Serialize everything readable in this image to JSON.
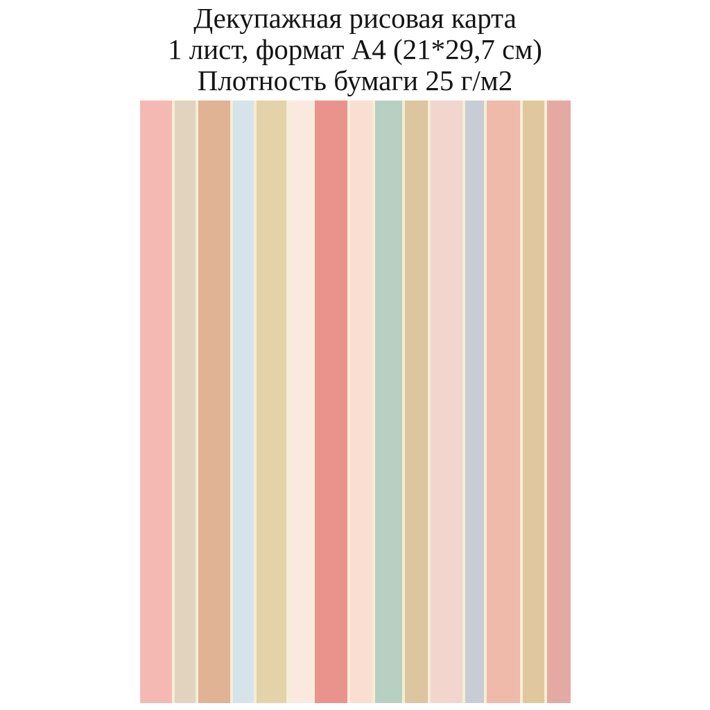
{
  "product_card": {
    "lines": [
      "Декупажная рисовая карта",
      "1 лист, формат А4 (21*29,7 см)",
      "Плотность бумаги 25 г/м2"
    ]
  },
  "colors": {
    "page_background": "#FFFFFF",
    "text": "#141414",
    "stripe_separator": "#F4EED5"
  },
  "stripe_panel": {
    "separator_color": "#F4EED5",
    "stripes": [
      {
        "name": "salmon-pink",
        "color": "#F5B9B4",
        "width": 46
      },
      {
        "name": "light-beige",
        "color": "#E1D3BD",
        "width": 30
      },
      {
        "name": "camel",
        "color": "#DFB394",
        "width": 46
      },
      {
        "name": "light-blue",
        "color": "#D4E4EA",
        "width": 30
      },
      {
        "name": "khaki",
        "color": "#E4D2A8",
        "width": 43
      },
      {
        "name": "pale-pink",
        "color": "#FBE9DF",
        "width": 33
      },
      {
        "name": "coral",
        "color": "#EA938D",
        "width": 47
      },
      {
        "name": "pale-peach",
        "color": "#FBDED2",
        "width": 32
      },
      {
        "name": "sage-green",
        "color": "#B8D0C2",
        "width": 39
      },
      {
        "name": "tan-khaki",
        "color": "#DCC59F",
        "width": 33
      },
      {
        "name": "light-pink",
        "color": "#F2D5CD",
        "width": 46
      },
      {
        "name": "blue-gray",
        "color": "#C8CDD5",
        "width": 27
      },
      {
        "name": "salmon-peach",
        "color": "#EFBAA9",
        "width": 48
      },
      {
        "name": "tan",
        "color": "#E1C89C",
        "width": 31
      },
      {
        "name": "dusty-rose",
        "color": "#E5A9A4",
        "width": 34
      }
    ]
  }
}
